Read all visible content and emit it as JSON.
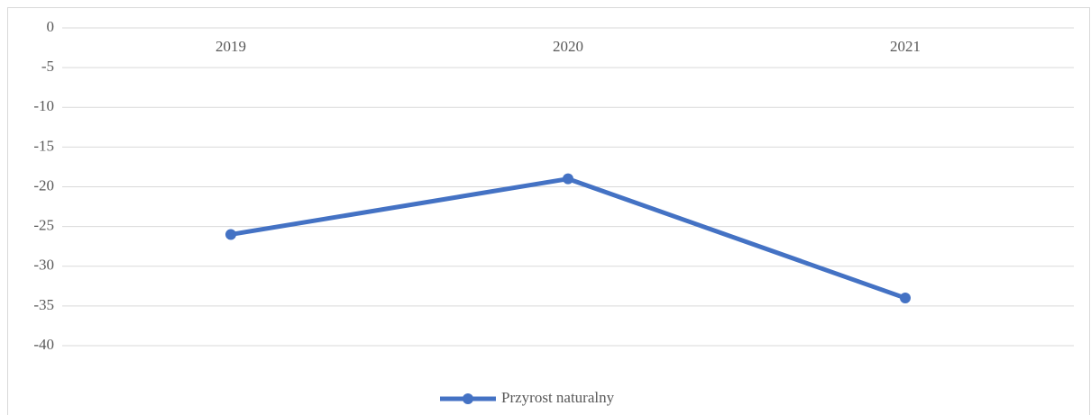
{
  "chart_data": {
    "type": "line",
    "categories": [
      "2019",
      "2020",
      "2021"
    ],
    "series": [
      {
        "name": "Przyrost naturalny",
        "color": "#4472c4",
        "values": [
          -26,
          -19,
          -34
        ]
      }
    ],
    "ylim": [
      -40,
      0
    ],
    "yticks": [
      0,
      -5,
      -10,
      -15,
      -20,
      -25,
      -30,
      -35,
      -40
    ],
    "grid": true,
    "legend": "bottom"
  }
}
